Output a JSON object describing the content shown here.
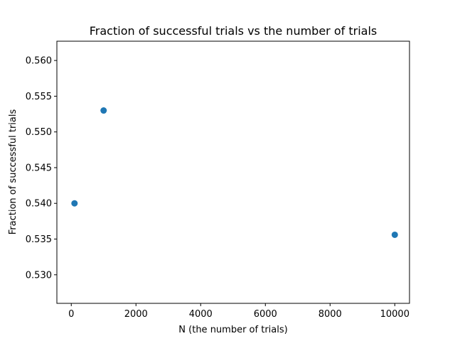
{
  "chart_data": {
    "type": "scatter",
    "title": "Fraction of successful trials vs the number of trials",
    "xlabel": "N (the number of trials)",
    "ylabel": "Fraction of successful trials",
    "xlim": [
      -445,
      10455
    ],
    "ylim": [
      0.526,
      0.5627
    ],
    "xticks": [
      0,
      2000,
      4000,
      6000,
      8000,
      10000
    ],
    "xtick_labels": [
      "0",
      "2000",
      "4000",
      "6000",
      "8000",
      "10000"
    ],
    "yticks": [
      0.53,
      0.535,
      0.54,
      0.545,
      0.55,
      0.555,
      0.56
    ],
    "ytick_labels": [
      "0.530",
      "0.535",
      "0.540",
      "0.545",
      "0.550",
      "0.555",
      "0.560"
    ],
    "grid": false,
    "legend": "none",
    "marker_color": "#1f77b4",
    "x": [
      100,
      1000,
      10000
    ],
    "y": [
      0.54,
      0.553,
      0.5356
    ]
  }
}
